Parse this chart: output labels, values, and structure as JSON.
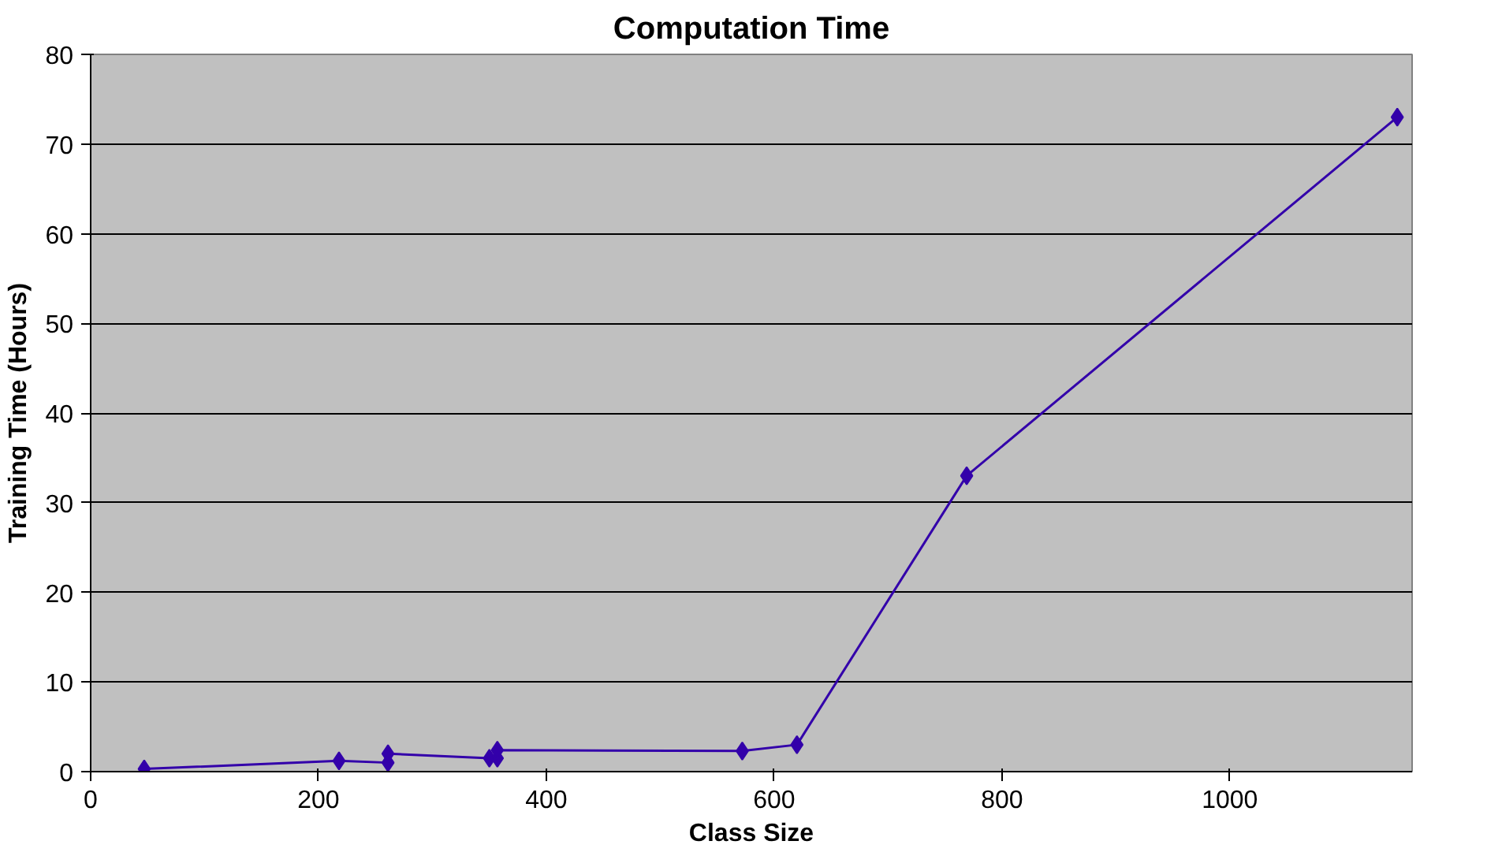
{
  "chart_data": {
    "type": "line",
    "title": "Computation Time",
    "xlabel": "Class Size",
    "ylabel": "Training Time (Hours)",
    "x": [
      47,
      218,
      261,
      261,
      350,
      357,
      357,
      572,
      620,
      769,
      1147
    ],
    "series": [
      {
        "color": "#3300aa",
        "values": [
          0.3,
          1.2,
          1.0,
          2.0,
          1.5,
          1.5,
          2.4,
          2.3,
          3.0,
          33,
          73
        ]
      }
    ],
    "xlim": [
      0,
      1160
    ],
    "xticks": [
      0,
      200,
      400,
      600,
      800,
      1000
    ],
    "ylim": [
      0,
      80
    ],
    "yticks": [
      0,
      10,
      20,
      30,
      40,
      50,
      60,
      70,
      80
    ],
    "grid": "y",
    "marker": "diamond",
    "line_style": "solid"
  }
}
